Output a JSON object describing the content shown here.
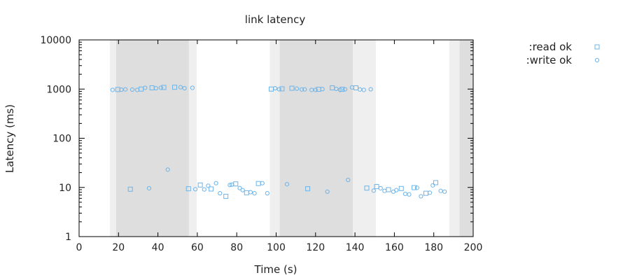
{
  "chart_data": {
    "type": "scatter",
    "title": "link latency",
    "xlabel": "Time (s)",
    "ylabel": "Latency (ms)",
    "xlim": [
      0,
      200
    ],
    "ylim": [
      1,
      10000
    ],
    "yscale": "log",
    "grid": false,
    "legend_placement": "top-right, outside plot",
    "x_ticks": [
      "0",
      "20",
      "40",
      "60",
      "80",
      "100",
      "120",
      "140",
      "160",
      "180",
      "200"
    ],
    "y_ticks": [
      "1",
      "10",
      "100",
      "1000",
      "10000"
    ],
    "regions": [
      {
        "start": 15.6,
        "end": 59.7,
        "shade": "light"
      },
      {
        "start": 18.8,
        "end": 55.7,
        "shade": "dark"
      },
      {
        "start": 96.8,
        "end": 150.6,
        "shade": "light"
      },
      {
        "start": 101.8,
        "end": 138.9,
        "shade": "dark"
      },
      {
        "start": 187.9,
        "end": 200,
        "shade": "light"
      },
      {
        "start": 193.1,
        "end": 200,
        "shade": "dark"
      }
    ],
    "series": [
      {
        "name": ":read ok",
        "marker": "square",
        "color": "#6cb4ea",
        "points": [
          [
            19.6,
            980
          ],
          [
            26.0,
            9.2
          ],
          [
            31.5,
            1000
          ],
          [
            37.0,
            1060
          ],
          [
            43.0,
            1080
          ],
          [
            48.5,
            1090
          ],
          [
            55.5,
            9.4
          ],
          [
            61.5,
            11.2
          ],
          [
            67.0,
            9.3
          ],
          [
            74.5,
            6.6
          ],
          [
            79.5,
            11.8
          ],
          [
            85.0,
            7.8
          ],
          [
            91.0,
            12.0
          ],
          [
            97.5,
            1000
          ],
          [
            103.0,
            1010
          ],
          [
            108.0,
            1040
          ],
          [
            116.0,
            9.4
          ],
          [
            121.5,
            990
          ],
          [
            128.5,
            1060
          ],
          [
            133.5,
            990
          ],
          [
            140.5,
            1060
          ],
          [
            146.0,
            9.7
          ],
          [
            151.0,
            10.4
          ],
          [
            157.0,
            9.0
          ],
          [
            163.5,
            9.5
          ],
          [
            170.0,
            9.9
          ],
          [
            176.0,
            7.6
          ],
          [
            181.0,
            12.5
          ]
        ]
      },
      {
        "name": ":write ok",
        "marker": "circle",
        "color": "#6cb4ea",
        "points": [
          [
            17.0,
            960
          ],
          [
            21.5,
            970
          ],
          [
            23.5,
            985
          ],
          [
            27.0,
            975
          ],
          [
            29.5,
            960
          ],
          [
            33.5,
            1060
          ],
          [
            35.5,
            9.6
          ],
          [
            39.0,
            1040
          ],
          [
            41.5,
            1060
          ],
          [
            45.0,
            23
          ],
          [
            51.5,
            1090
          ],
          [
            53.5,
            1040
          ],
          [
            57.5,
            1060
          ],
          [
            59.0,
            9.2
          ],
          [
            63.5,
            9.1
          ],
          [
            65.5,
            10.8
          ],
          [
            69.5,
            12.2
          ],
          [
            71.5,
            7.6
          ],
          [
            76.5,
            11.2
          ],
          [
            77.5,
            11.4
          ],
          [
            81.5,
            9.7
          ],
          [
            83.0,
            8.8
          ],
          [
            87.0,
            8.0
          ],
          [
            89.0,
            7.6
          ],
          [
            93.0,
            12.2
          ],
          [
            95.5,
            7.6
          ],
          [
            99.5,
            1040
          ],
          [
            101.5,
            990
          ],
          [
            105.5,
            11.6
          ],
          [
            110.5,
            1020
          ],
          [
            113.0,
            980
          ],
          [
            114.5,
            985
          ],
          [
            118.0,
            960
          ],
          [
            120.0,
            960
          ],
          [
            123.5,
            1000
          ],
          [
            126.0,
            8.2
          ],
          [
            130.5,
            1010
          ],
          [
            132.5,
            960
          ],
          [
            135.0,
            990
          ],
          [
            136.5,
            14.2
          ],
          [
            138.5,
            1080
          ],
          [
            142.5,
            980
          ],
          [
            144.5,
            960
          ],
          [
            148.0,
            990
          ],
          [
            149.5,
            8.6
          ],
          [
            153.0,
            9.6
          ],
          [
            155.0,
            8.5
          ],
          [
            159.5,
            8.2
          ],
          [
            161.0,
            8.8
          ],
          [
            165.5,
            7.4
          ],
          [
            167.5,
            7.2
          ],
          [
            171.5,
            9.8
          ],
          [
            173.5,
            6.6
          ],
          [
            178.0,
            7.8
          ],
          [
            179.5,
            11.0
          ],
          [
            183.5,
            8.5
          ],
          [
            185.5,
            8.2
          ]
        ]
      }
    ]
  }
}
